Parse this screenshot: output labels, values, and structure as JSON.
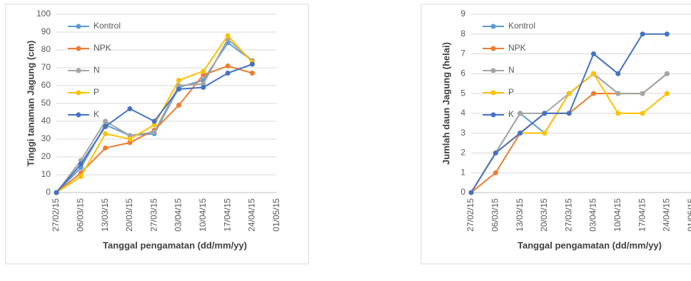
{
  "chart_data": [
    {
      "type": "line",
      "y_label": "Tinggi tanaman Jagung (cm)",
      "x_label": "Tanggal pengamatan (dd/mm/yy)",
      "categories": [
        "27/02/15",
        "06/03/15",
        "13/03/15",
        "20/03/15",
        "27/03/15",
        "03/04/15",
        "10/04/15",
        "17/04/15",
        "24/04/15",
        "01/05/15"
      ],
      "series": [
        {
          "name": "Kontrol",
          "color": "#5b9bd5",
          "values": [
            0,
            14,
            38,
            32,
            33,
            59,
            63,
            84,
            74,
            null
          ]
        },
        {
          "name": "NPK",
          "color": "#ed7d31",
          "values": [
            0,
            11,
            25,
            28,
            35,
            49,
            66,
            71,
            67,
            null
          ]
        },
        {
          "name": "N",
          "color": "#a5a5a5",
          "values": [
            0,
            18,
            40,
            32,
            34,
            60,
            61,
            86,
            74,
            null
          ]
        },
        {
          "name": "P",
          "color": "#ffc000",
          "values": [
            0,
            9,
            33,
            30,
            38,
            63,
            68,
            88,
            73,
            null
          ]
        },
        {
          "name": "K",
          "color": "#4472c4",
          "values": [
            0,
            16,
            37,
            47,
            40,
            58,
            59,
            67,
            72,
            null
          ]
        }
      ],
      "ylim": [
        0,
        100
      ],
      "yticks": [
        0,
        10,
        20,
        30,
        40,
        50,
        60,
        70,
        80,
        90,
        100
      ],
      "grid": true
    },
    {
      "type": "line",
      "y_label": "Jumlah daun Jagung (helai)",
      "x_label": "Tanggal pengamatan (dd/mm/yy)",
      "categories": [
        "27/02/15",
        "06/03/15",
        "13/03/15",
        "20/03/15",
        "27/03/15",
        "03/04/15",
        "10/04/15",
        "17/04/15",
        "24/04/15",
        "01/05/15"
      ],
      "series": [
        {
          "name": "Kontrol",
          "color": "#5b9bd5",
          "values": [
            0,
            2,
            4,
            3,
            5,
            6,
            5,
            5,
            6,
            null
          ]
        },
        {
          "name": "NPK",
          "color": "#ed7d31",
          "values": [
            0,
            1,
            3,
            4,
            4,
            5,
            5,
            5,
            6,
            null
          ]
        },
        {
          "name": "N",
          "color": "#a5a5a5",
          "values": [
            0,
            2,
            4,
            4,
            5,
            6,
            5,
            5,
            6,
            null
          ]
        },
        {
          "name": "P",
          "color": "#ffc000",
          "values": [
            0,
            2,
            3,
            3,
            5,
            6,
            4,
            4,
            5,
            null
          ]
        },
        {
          "name": "K",
          "color": "#4472c4",
          "values": [
            0,
            2,
            3,
            4,
            4,
            7,
            6,
            8,
            8,
            null
          ]
        }
      ],
      "ylim": [
        0,
        9
      ],
      "yticks": [
        0,
        1,
        2,
        3,
        4,
        5,
        6,
        7,
        8,
        9
      ],
      "grid": true
    }
  ]
}
